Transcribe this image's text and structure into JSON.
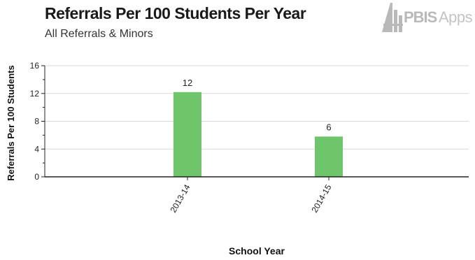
{
  "logo": {
    "text_a": "PBIS",
    "text_b": "Apps"
  },
  "colors": {
    "bar": "#6ec56a",
    "grid": "#d8d8d8",
    "axis": "#222222",
    "logo": "#b9b9b9"
  },
  "chart_data": {
    "type": "bar",
    "title": "Referrals Per 100 Students Per Year",
    "subtitle": "All Referrals & Minors",
    "xlabel": "School Year",
    "ylabel": "Referrals Per 100 Students",
    "categories": [
      "2013-14",
      "2014-15"
    ],
    "values": [
      12.2,
      5.8
    ],
    "data_labels": [
      "12",
      "6"
    ],
    "ylim": [
      0,
      16
    ],
    "yticks": [
      "0",
      "4",
      "8",
      "12",
      "16"
    ],
    "grid": true,
    "legend": "none"
  }
}
